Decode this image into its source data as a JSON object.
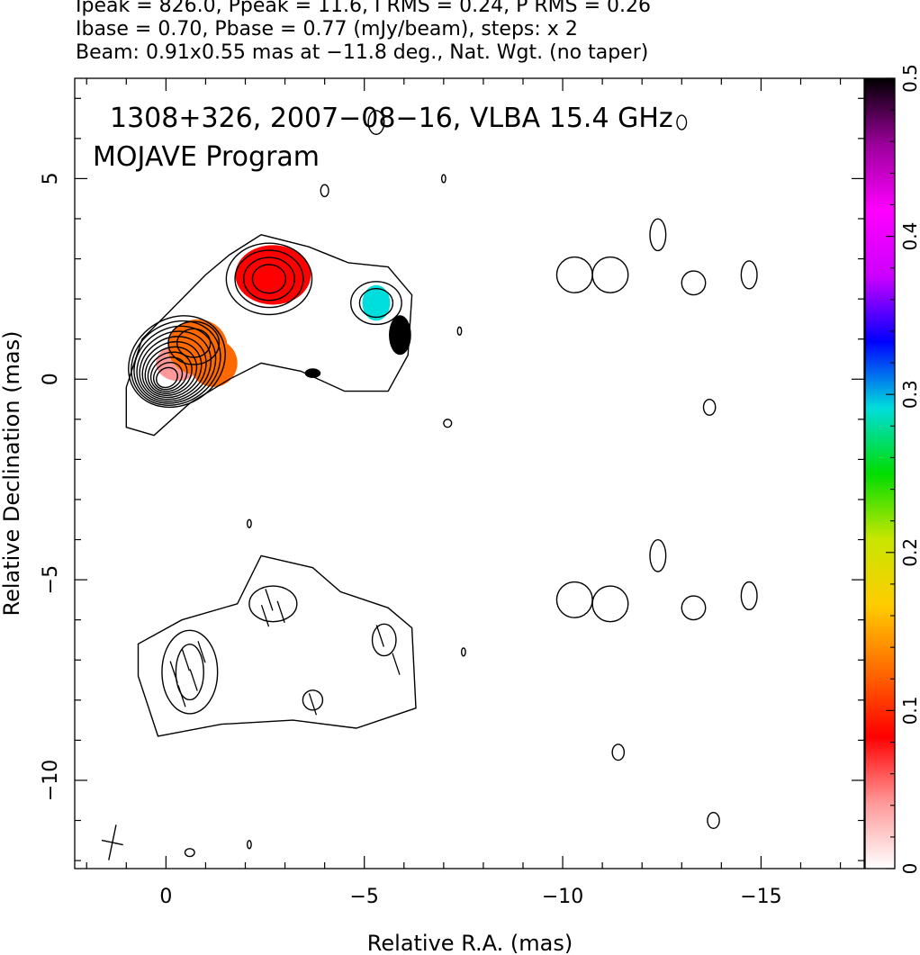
{
  "header": {
    "line1": "Ipeak = 826.0, Ppeak = 11.6, I RMS = 0.24, P RMS = 0.26",
    "line2": "Ibase = 0.70, Pbase = 0.77 (mJy/beam), steps: x 2",
    "line3": "Beam: 0.91x0.55 mas at −11.8 deg., Nat. Wgt. (no taper)"
  },
  "annotation": {
    "line1": "1308+326, 2007−08−16, VLBA 15.4 GHz",
    "line2": "MOJAVE Program"
  },
  "chart_data": {
    "type": "heatmap",
    "subtype": "radio contour map with fractional polarization color overlay",
    "xlabel": "Relative R.A. (mas)",
    "ylabel": "Relative Declination (mas)",
    "xlim": [
      2.3,
      -17.6
    ],
    "ylim": [
      -12.2,
      7.5
    ],
    "x_reversed": true,
    "x_ticks": [
      0,
      -5,
      -10,
      -15
    ],
    "x_tick_labels": [
      "0",
      "−5",
      "−10",
      "−15"
    ],
    "y_ticks": [
      5,
      0,
      -5,
      -10
    ],
    "y_tick_labels": [
      "5",
      "0",
      "−5",
      "−10"
    ],
    "colorbar": {
      "range": [
        0,
        0.5
      ],
      "ticks": [
        0,
        0.1,
        0.2,
        0.3,
        0.4,
        0.5
      ],
      "tick_labels": [
        "0",
        "0.1",
        "0.2",
        "0.3",
        "0.4",
        "0.5"
      ],
      "colors": [
        "#ffffff",
        "#ff9999",
        "#ff0000",
        "#ff6a00",
        "#ffcc00",
        "#c8e600",
        "#00dd00",
        "#00dddd",
        "#0000ff",
        "#cc00ff",
        "#ff00ff",
        "#990099",
        "#000000"
      ]
    },
    "intensity_peak_mJy_beam": 826.0,
    "polarization_peak_mJy_beam": 11.6,
    "intensity_rms": 0.24,
    "polarization_rms": 0.26,
    "intensity_base": 0.7,
    "polarization_base": 0.77,
    "contour_step_factor": 2,
    "beam": {
      "major_mas": 0.91,
      "minor_mas": 0.55,
      "pa_deg": -11.8
    },
    "core": {
      "x": 0,
      "y": 0
    },
    "jet_knots": [
      {
        "x": -0.7,
        "y": 0.9
      },
      {
        "x": -2.6,
        "y": 2.5
      },
      {
        "x": -5.3,
        "y": 1.9
      }
    ],
    "polarization_patches": [
      {
        "x": -0.3,
        "y": 0.4,
        "value": 0.06
      },
      {
        "x": -0.8,
        "y": 0.8,
        "value": 0.13
      },
      {
        "x": -1.2,
        "y": 0.4,
        "value": 0.12
      },
      {
        "x": -2.7,
        "y": 2.6,
        "value": 0.09
      },
      {
        "x": -5.3,
        "y": 1.9,
        "value": 0.29
      },
      {
        "x": -5.9,
        "y": 1.1,
        "value": 0.48
      },
      {
        "x": -3.7,
        "y": 0.15,
        "value": 0.5
      }
    ],
    "evpa_panel_offset_y": -7.4
  }
}
